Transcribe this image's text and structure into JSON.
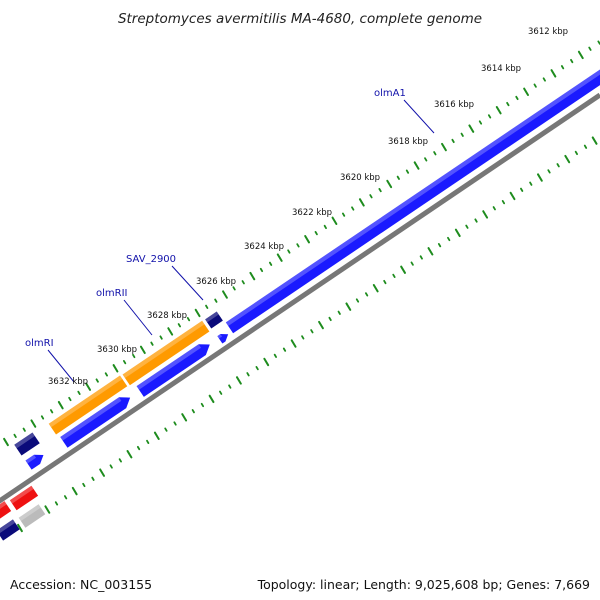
{
  "title": "Streptomyces avermitilis MA-4680, complete genome",
  "footer": {
    "accession": "Accession: NC_003155",
    "summary": "Topology: linear; Length: 9,025,608 bp; Genes: 7,669"
  },
  "ticks": [
    "3612 kbp",
    "3614 kbp",
    "3616 kbp",
    "3618 kbp",
    "3620 kbp",
    "3622 kbp",
    "3624 kbp",
    "3626 kbp",
    "3628 kbp",
    "3630 kbp",
    "3632 kbp"
  ],
  "genes": [
    {
      "label": "olmA1",
      "color": "#1a1aff"
    },
    {
      "label": "SAV_2900",
      "color": "#0a0a7a"
    },
    {
      "label": "olmRII",
      "color": "#1a1aff"
    },
    {
      "label": "olmRI",
      "color": "#ff9a00"
    }
  ],
  "colors": {
    "forward": "#1a1aff",
    "dark": "#0a0a7a",
    "orange": "#ff9a00",
    "red": "#ee1111",
    "grey": "#bbbbbb",
    "axis": "#777777",
    "tick": "#1e8c1e",
    "label": "#1111aa"
  }
}
